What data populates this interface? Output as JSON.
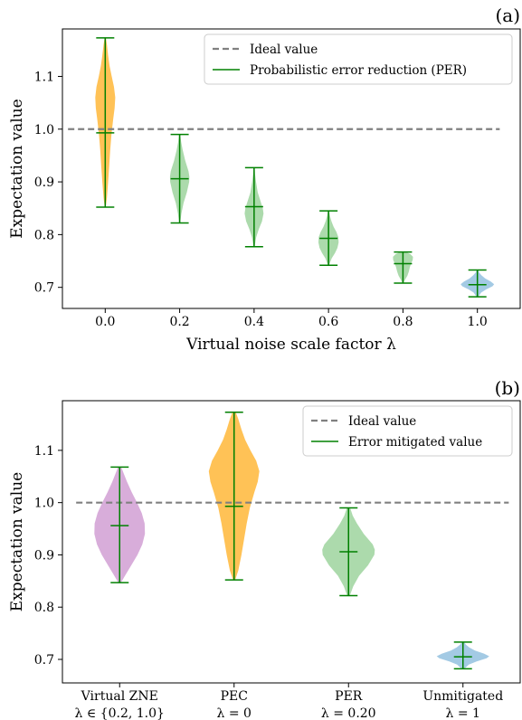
{
  "chart_data": [
    {
      "type": "violin",
      "panel_label": "(a)",
      "xlabel": "Virtual noise scale factor λ",
      "ylabel": "Expectation value",
      "ylim": [
        0.66,
        1.19
      ],
      "xlim": [
        -0.115,
        1.115
      ],
      "yticks": [
        0.7,
        0.8,
        0.9,
        1.0,
        1.1
      ],
      "ytick_labels": [
        "0.7",
        "0.8",
        "0.9",
        "1.0",
        "1.1"
      ],
      "xtick_labels": [
        "0.0",
        "0.2",
        "0.4",
        "0.6",
        "0.8",
        "1.0"
      ],
      "ideal_value": 1.0,
      "ideal_x_range": [
        -0.1,
        1.06
      ],
      "legend": {
        "position": "top-right",
        "entries": [
          "Ideal value",
          "Probabilistic error reduction (PER)"
        ]
      },
      "violins": [
        {
          "x": 0.0,
          "min": 0.852,
          "max": 1.173,
          "median": 0.993,
          "color": "#ffbf4d",
          "halfwidth": 0.028,
          "shape": [
            [
              0.852,
              0.04
            ],
            [
              0.87,
              0.16
            ],
            [
              0.9,
              0.28
            ],
            [
              0.93,
              0.38
            ],
            [
              0.96,
              0.48
            ],
            [
              0.99,
              0.6
            ],
            [
              1.02,
              0.77
            ],
            [
              1.04,
              0.9
            ],
            [
              1.06,
              0.96
            ],
            [
              1.08,
              0.84
            ],
            [
              1.1,
              0.62
            ],
            [
              1.12,
              0.42
            ],
            [
              1.14,
              0.28
            ],
            [
              1.16,
              0.16
            ],
            [
              1.173,
              0.06
            ]
          ]
        },
        {
          "x": 0.2,
          "min": 0.822,
          "max": 0.99,
          "median": 0.906,
          "color": "#a8d8a8",
          "halfwidth": 0.026,
          "shape": [
            [
              0.822,
              0.05
            ],
            [
              0.84,
              0.18
            ],
            [
              0.86,
              0.4
            ],
            [
              0.88,
              0.74
            ],
            [
              0.9,
              0.98
            ],
            [
              0.91,
              1.0
            ],
            [
              0.92,
              0.92
            ],
            [
              0.94,
              0.58
            ],
            [
              0.96,
              0.32
            ],
            [
              0.975,
              0.16
            ],
            [
              0.99,
              0.06
            ]
          ]
        },
        {
          "x": 0.4,
          "min": 0.777,
          "max": 0.927,
          "median": 0.853,
          "color": "#a8d8a8",
          "halfwidth": 0.026,
          "shape": [
            [
              0.777,
              0.05
            ],
            [
              0.795,
              0.22
            ],
            [
              0.81,
              0.48
            ],
            [
              0.825,
              0.82
            ],
            [
              0.84,
              0.98
            ],
            [
              0.85,
              0.9
            ],
            [
              0.865,
              0.64
            ],
            [
              0.88,
              0.38
            ],
            [
              0.9,
              0.2
            ],
            [
              0.915,
              0.1
            ],
            [
              0.927,
              0.05
            ]
          ]
        },
        {
          "x": 0.6,
          "min": 0.742,
          "max": 0.845,
          "median": 0.793,
          "color": "#a8d8a8",
          "halfwidth": 0.028,
          "shape": [
            [
              0.742,
              0.05
            ],
            [
              0.755,
              0.3
            ],
            [
              0.765,
              0.62
            ],
            [
              0.775,
              0.86
            ],
            [
              0.785,
              0.97
            ],
            [
              0.795,
              0.94
            ],
            [
              0.805,
              0.76
            ],
            [
              0.815,
              0.48
            ],
            [
              0.825,
              0.28
            ],
            [
              0.835,
              0.14
            ],
            [
              0.845,
              0.05
            ]
          ]
        },
        {
          "x": 0.8,
          "min": 0.708,
          "max": 0.767,
          "median": 0.745,
          "color": "#a8d8a8",
          "halfwidth": 0.028,
          "shape": [
            [
              0.708,
              0.04
            ],
            [
              0.715,
              0.22
            ],
            [
              0.722,
              0.42
            ],
            [
              0.73,
              0.56
            ],
            [
              0.738,
              0.66
            ],
            [
              0.746,
              0.8
            ],
            [
              0.752,
              0.94
            ],
            [
              0.758,
              0.96
            ],
            [
              0.763,
              0.7
            ],
            [
              0.767,
              0.28
            ]
          ]
        },
        {
          "x": 1.0,
          "min": 0.682,
          "max": 0.733,
          "median": 0.705,
          "color": "#9ec7e3",
          "halfwidth": 0.045,
          "shape": [
            [
              0.682,
              0.05
            ],
            [
              0.69,
              0.22
            ],
            [
              0.696,
              0.52
            ],
            [
              0.702,
              0.9
            ],
            [
              0.706,
              1.0
            ],
            [
              0.711,
              0.8
            ],
            [
              0.717,
              0.46
            ],
            [
              0.723,
              0.24
            ],
            [
              0.728,
              0.11
            ],
            [
              0.733,
              0.04
            ]
          ]
        }
      ]
    },
    {
      "type": "violin",
      "panel_label": "(b)",
      "xlabel": "",
      "ylabel": "Expectation value",
      "ylim": [
        0.655,
        1.195
      ],
      "xlim": [
        0.5,
        4.5
      ],
      "yticks": [
        0.7,
        0.8,
        0.9,
        1.0,
        1.1
      ],
      "ytick_labels": [
        "0.7",
        "0.8",
        "0.9",
        "1.0",
        "1.1"
      ],
      "xtick_labels": [
        [
          "Virtual ZNE",
          "λ ∈ {0.2, 1.0}"
        ],
        [
          "PEC",
          "λ = 0"
        ],
        [
          "PER",
          "λ = 0.20"
        ],
        [
          "Unmitigated",
          "λ = 1"
        ]
      ],
      "ideal_value": 1.0,
      "ideal_x_range": [
        0.62,
        4.4
      ],
      "legend": {
        "position": "top-right",
        "entries": [
          "Ideal value",
          "Error mitigated value"
        ]
      },
      "violins": [
        {
          "x": 1,
          "min": 0.847,
          "max": 1.068,
          "median": 0.956,
          "color": "#d6a9d8",
          "halfwidth": 0.23,
          "shape": [
            [
              0.847,
              0.05
            ],
            [
              0.86,
              0.2
            ],
            [
              0.88,
              0.44
            ],
            [
              0.9,
              0.68
            ],
            [
              0.92,
              0.86
            ],
            [
              0.94,
              0.96
            ],
            [
              0.96,
              0.95
            ],
            [
              0.98,
              0.84
            ],
            [
              1.0,
              0.66
            ],
            [
              1.02,
              0.46
            ],
            [
              1.04,
              0.28
            ],
            [
              1.055,
              0.16
            ],
            [
              1.068,
              0.06
            ]
          ]
        },
        {
          "x": 2,
          "min": 0.852,
          "max": 1.173,
          "median": 0.993,
          "color": "#ffbf4d",
          "halfwidth": 0.23,
          "shape": [
            [
              0.852,
              0.04
            ],
            [
              0.87,
              0.16
            ],
            [
              0.9,
              0.28
            ],
            [
              0.93,
              0.38
            ],
            [
              0.96,
              0.48
            ],
            [
              0.99,
              0.6
            ],
            [
              1.02,
              0.77
            ],
            [
              1.04,
              0.9
            ],
            [
              1.06,
              0.96
            ],
            [
              1.08,
              0.84
            ],
            [
              1.1,
              0.62
            ],
            [
              1.12,
              0.42
            ],
            [
              1.14,
              0.28
            ],
            [
              1.16,
              0.16
            ],
            [
              1.173,
              0.06
            ]
          ]
        },
        {
          "x": 3,
          "min": 0.822,
          "max": 0.99,
          "median": 0.906,
          "color": "#a8d8a8",
          "halfwidth": 0.23,
          "shape": [
            [
              0.822,
              0.05
            ],
            [
              0.84,
              0.18
            ],
            [
              0.86,
              0.4
            ],
            [
              0.88,
              0.74
            ],
            [
              0.9,
              0.98
            ],
            [
              0.91,
              1.0
            ],
            [
              0.92,
              0.92
            ],
            [
              0.94,
              0.58
            ],
            [
              0.96,
              0.32
            ],
            [
              0.975,
              0.16
            ],
            [
              0.99,
              0.06
            ]
          ]
        },
        {
          "x": 4,
          "min": 0.682,
          "max": 0.733,
          "median": 0.705,
          "color": "#9ec7e3",
          "halfwidth": 0.23,
          "shape": [
            [
              0.682,
              0.05
            ],
            [
              0.69,
              0.22
            ],
            [
              0.696,
              0.52
            ],
            [
              0.702,
              0.9
            ],
            [
              0.706,
              1.0
            ],
            [
              0.711,
              0.8
            ],
            [
              0.717,
              0.46
            ],
            [
              0.723,
              0.24
            ],
            [
              0.728,
              0.11
            ],
            [
              0.733,
              0.04
            ]
          ]
        }
      ]
    }
  ],
  "colors": {
    "ideal_line": "#808080",
    "stat_line": "#008000",
    "axis": "#000000"
  }
}
